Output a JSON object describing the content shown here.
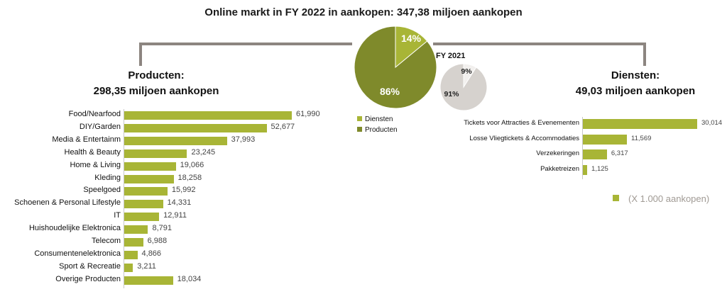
{
  "title": "Online markt in FY 2022 in aankopen: 347,38 miljoen aankopen",
  "products_heading": {
    "line1": "Producten:",
    "line2": "298,35 miljoen aankopen"
  },
  "services_heading": {
    "line1": "Diensten:",
    "line2": "49,03 miljoen aankopen"
  },
  "colors": {
    "light_green": "#a8b536",
    "dark_green": "#7f8a2b",
    "grey": "#d6d2ce",
    "connector": "#8c8580"
  },
  "chart_data": [
    {
      "type": "pie",
      "title": "",
      "labels": [
        "Diensten",
        "Producten"
      ],
      "values": [
        14,
        86
      ],
      "value_labels": [
        "14%",
        "86%"
      ],
      "legend": [
        "Diensten",
        "Producten"
      ],
      "legend_position": "bottom"
    },
    {
      "type": "pie",
      "title": "FY 2021",
      "labels": [
        "Diensten",
        "Producten"
      ],
      "values": [
        9,
        91
      ],
      "value_labels": [
        "9%",
        "91%"
      ]
    },
    {
      "type": "bar",
      "orientation": "horizontal",
      "categories": [
        "Food/Nearfood",
        "DIY/Garden",
        "Media & Entertainm",
        "Health & Beauty",
        "Home & Living",
        "Kleding",
        "Speelgoed",
        "Schoenen & Personal Lifestyle",
        "IT",
        "Huishoudelijke Elektronica",
        "Telecom",
        "Consumentenelektronica",
        "Sport & Recreatie",
        "Overige Producten"
      ],
      "values": [
        61990,
        52677,
        37993,
        23245,
        19066,
        18258,
        15992,
        14331,
        12911,
        8791,
        6988,
        4866,
        3211,
        18034
      ],
      "value_labels": [
        "61,990",
        "52,677",
        "37,993",
        "23,245",
        "19,066",
        "18,258",
        "15,992",
        "14,331",
        "12,911",
        "8,791",
        "6,988",
        "4,866",
        "3,211",
        "18,034"
      ]
    },
    {
      "type": "bar",
      "orientation": "horizontal",
      "categories": [
        "Tickets voor Attracties & Evenementen",
        "Losse Vliegtickets & Accommodaties",
        "Verzekeringen",
        "Pakketreizen"
      ],
      "values": [
        30014,
        11569,
        6317,
        1125
      ],
      "value_labels": [
        "30,014",
        "11,569",
        "6,317",
        "1,125"
      ],
      "unit_note": "(X 1.000 aankopen)"
    }
  ]
}
